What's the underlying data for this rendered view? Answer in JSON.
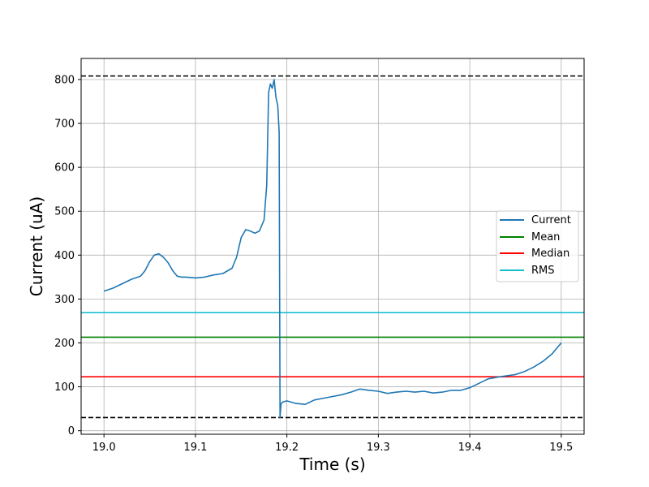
{
  "chart_data": {
    "type": "line",
    "title": "",
    "xlabel": "Time (s)",
    "ylabel": "Current (uA)",
    "xlim": [
      18.975,
      19.525
    ],
    "ylim": [
      -8,
      848
    ],
    "xticks": [
      19.0,
      19.1,
      19.2,
      19.3,
      19.4,
      19.5
    ],
    "xtick_labels": [
      "19.0",
      "19.1",
      "19.2",
      "19.3",
      "19.4",
      "19.5"
    ],
    "yticks": [
      0,
      100,
      200,
      300,
      400,
      500,
      600,
      700,
      800
    ],
    "ytick_labels": [
      "0",
      "100",
      "200",
      "300",
      "400",
      "500",
      "600",
      "700",
      "800"
    ],
    "grid": true,
    "legend_position": "center-right",
    "series": [
      {
        "name": "Current",
        "color": "#1f77b4",
        "x": [
          19.0,
          19.01,
          19.02,
          19.03,
          19.04,
          19.045,
          19.05,
          19.055,
          19.06,
          19.065,
          19.07,
          19.075,
          19.08,
          19.085,
          19.09,
          19.1,
          19.11,
          19.12,
          19.13,
          19.14,
          19.145,
          19.15,
          19.155,
          19.16,
          19.165,
          19.17,
          19.175,
          19.178,
          19.18,
          19.182,
          19.184,
          19.186,
          19.188,
          19.19,
          19.1915,
          19.1925,
          19.1935,
          19.195,
          19.2,
          19.21,
          19.22,
          19.23,
          19.24,
          19.25,
          19.26,
          19.27,
          19.28,
          19.29,
          19.3,
          19.31,
          19.32,
          19.33,
          19.34,
          19.35,
          19.36,
          19.37,
          19.38,
          19.39,
          19.4,
          19.41,
          19.42,
          19.43,
          19.44,
          19.45,
          19.46,
          19.47,
          19.48,
          19.49,
          19.5
        ],
        "y": [
          318,
          325,
          335,
          345,
          352,
          365,
          385,
          400,
          403,
          395,
          383,
          365,
          352,
          350,
          350,
          348,
          350,
          355,
          358,
          370,
          395,
          440,
          458,
          455,
          450,
          455,
          480,
          560,
          770,
          790,
          780,
          800,
          760,
          740,
          680,
          30,
          60,
          65,
          68,
          62,
          60,
          70,
          74,
          78,
          82,
          88,
          95,
          92,
          90,
          85,
          88,
          90,
          88,
          90,
          86,
          88,
          92,
          92,
          98,
          108,
          118,
          122,
          125,
          128,
          135,
          145,
          158,
          175,
          200
        ]
      }
    ],
    "hlines": [
      {
        "name": "Mean",
        "y": 213,
        "color": "#008000",
        "style": "solid"
      },
      {
        "name": "Median",
        "y": 123,
        "color": "#ff0000",
        "style": "solid"
      },
      {
        "name": "RMS",
        "y": 269,
        "color": "#17becf",
        "style": "solid"
      },
      {
        "name": "",
        "y": 808,
        "color": "#000000",
        "style": "dashed"
      },
      {
        "name": "",
        "y": 30,
        "color": "#000000",
        "style": "dashed"
      }
    ],
    "legend": [
      "Current",
      "Mean",
      "Median",
      "RMS"
    ]
  }
}
